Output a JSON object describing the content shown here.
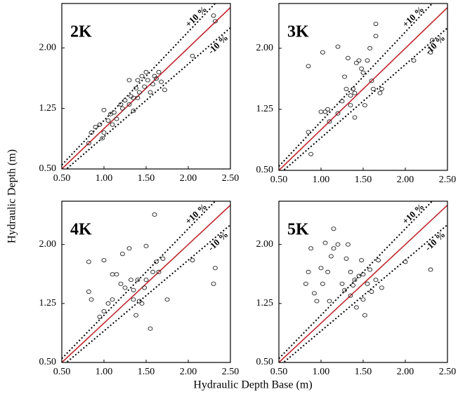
{
  "xlabel": "Hydraulic Depth Base (m)",
  "ylabel": "Hydraulic Depth (m)",
  "chart_data": [
    {
      "type": "scatter",
      "title": "2K",
      "annotations": [
        "+10 %",
        "-10 %"
      ],
      "tolerance_pct": 10,
      "x": [
        0.82,
        0.85,
        0.9,
        0.95,
        0.98,
        1.0,
        1.0,
        1.05,
        1.08,
        1.1,
        1.12,
        1.15,
        1.2,
        1.22,
        1.25,
        1.3,
        1.32,
        1.35,
        1.35,
        1.38,
        1.4,
        1.42,
        1.45,
        1.48,
        1.5,
        1.52,
        1.55,
        1.58,
        1.6,
        1.62,
        1.65,
        1.68,
        1.72,
        1.3,
        1.4,
        2.05,
        2.3,
        2.32
      ],
      "y": [
        0.82,
        0.95,
        1.02,
        1.05,
        0.88,
        1.23,
        0.95,
        1.1,
        1.18,
        1.05,
        1.2,
        1.12,
        1.3,
        1.25,
        1.35,
        1.3,
        1.4,
        1.38,
        1.22,
        1.5,
        1.6,
        1.45,
        1.65,
        1.52,
        1.7,
        1.6,
        1.45,
        1.55,
        1.65,
        1.62,
        1.7,
        1.58,
        1.48,
        1.6,
        1.38,
        1.9,
        2.4,
        2.33
      ],
      "xlim": [
        0.5,
        2.5
      ],
      "ylim": [
        0.5,
        2.55
      ],
      "xticks": [
        {
          "value": 0.5,
          "label": "0.50"
        },
        {
          "value": 1,
          "label": "1.00"
        },
        {
          "value": 1.5,
          "label": "1.50"
        },
        {
          "value": 2,
          "label": "2.00"
        },
        {
          "value": 2.5,
          "label": "2.50"
        }
      ],
      "yticks": [
        {
          "value": 0.5,
          "label": "0.50"
        },
        {
          "value": 1.25,
          "label": "1.25"
        },
        {
          "value": 2,
          "label": "2.00"
        }
      ]
    },
    {
      "type": "scatter",
      "title": "3K",
      "annotations": [
        "+10 %",
        "-10 %"
      ],
      "tolerance_pct": 10,
      "x": [
        0.85,
        0.85,
        0.88,
        1.0,
        1.02,
        1.05,
        1.08,
        1.1,
        1.2,
        1.2,
        1.25,
        1.28,
        1.3,
        1.32,
        1.35,
        1.35,
        1.38,
        1.4,
        1.42,
        1.45,
        1.48,
        1.5,
        1.52,
        1.55,
        1.58,
        1.6,
        1.62,
        1.65,
        1.65,
        1.7,
        1.72,
        1.4,
        2.1,
        2.3,
        2.32
      ],
      "y": [
        1.78,
        0.97,
        0.7,
        1.22,
        1.95,
        1.22,
        1.25,
        1.1,
        1.2,
        2.02,
        1.35,
        1.65,
        1.5,
        1.88,
        1.42,
        1.3,
        1.5,
        1.45,
        1.82,
        1.85,
        1.75,
        1.7,
        1.3,
        1.85,
        2.0,
        1.6,
        1.5,
        2.15,
        2.3,
        1.45,
        1.5,
        1.15,
        1.85,
        1.95,
        2.1
      ],
      "xlim": [
        0.5,
        2.5
      ],
      "ylim": [
        0.5,
        2.55
      ],
      "xticks": [
        {
          "value": 0.5,
          "label": "0.50"
        },
        {
          "value": 1,
          "label": "1.00"
        },
        {
          "value": 1.5,
          "label": "1.50"
        },
        {
          "value": 2,
          "label": "2.00"
        },
        {
          "value": 2.5,
          "label": "2.50"
        }
      ],
      "yticks": [
        {
          "value": 0.5,
          "label": "0.50"
        },
        {
          "value": 1.25,
          "label": "1.25"
        },
        {
          "value": 2,
          "label": "2.00"
        }
      ]
    },
    {
      "type": "scatter",
      "title": "4K",
      "annotations": [
        "+10 %",
        "-10 %"
      ],
      "tolerance_pct": 10,
      "x": [
        0.82,
        0.82,
        0.85,
        0.95,
        1.0,
        1.0,
        1.05,
        1.1,
        1.1,
        1.15,
        1.2,
        1.22,
        1.25,
        1.3,
        1.32,
        1.35,
        1.35,
        1.38,
        1.4,
        1.42,
        1.45,
        1.48,
        1.5,
        1.5,
        1.55,
        1.58,
        1.6,
        1.62,
        1.65,
        1.7,
        1.75,
        2.05,
        2.3,
        2.32
      ],
      "y": [
        1.78,
        1.4,
        1.3,
        1.08,
        1.15,
        1.8,
        1.25,
        1.3,
        1.62,
        1.62,
        1.5,
        1.88,
        1.45,
        1.95,
        1.55,
        1.3,
        1.42,
        1.1,
        1.55,
        1.28,
        1.25,
        1.45,
        1.98,
        1.55,
        0.93,
        1.65,
        2.38,
        1.78,
        1.65,
        1.82,
        1.3,
        1.8,
        1.5,
        1.7
      ],
      "xlim": [
        0.5,
        2.5
      ],
      "ylim": [
        0.5,
        2.55
      ],
      "xticks": [
        {
          "value": 0.5,
          "label": "0.50"
        },
        {
          "value": 1,
          "label": "1.00"
        },
        {
          "value": 1.5,
          "label": "1.50"
        },
        {
          "value": 2,
          "label": "2.00"
        },
        {
          "value": 2.5,
          "label": "2.50"
        }
      ],
      "yticks": [
        {
          "value": 0.5,
          "label": "0.50"
        },
        {
          "value": 1.25,
          "label": "1.25"
        },
        {
          "value": 2,
          "label": "2.00"
        }
      ]
    },
    {
      "type": "scatter",
      "title": "5K",
      "annotations": [
        "+10 %",
        "-10 %"
      ],
      "tolerance_pct": 10,
      "x": [
        0.82,
        0.85,
        0.88,
        0.92,
        0.95,
        1.0,
        1.02,
        1.05,
        1.08,
        1.1,
        1.12,
        1.15,
        1.15,
        1.2,
        1.25,
        1.28,
        1.3,
        1.32,
        1.35,
        1.35,
        1.38,
        1.4,
        1.42,
        1.45,
        1.48,
        1.5,
        1.5,
        1.52,
        1.55,
        1.58,
        1.6,
        1.65,
        1.68,
        1.72,
        2.0,
        2.3
      ],
      "y": [
        1.5,
        1.65,
        1.95,
        1.38,
        1.28,
        1.7,
        1.5,
        2.02,
        1.65,
        1.28,
        1.85,
        1.95,
        2.2,
        2.0,
        1.5,
        1.42,
        1.82,
        2.0,
        1.65,
        1.35,
        1.48,
        1.55,
        1.2,
        1.6,
        1.8,
        1.3,
        1.62,
        1.1,
        1.5,
        1.68,
        1.4,
        1.55,
        1.8,
        1.45,
        1.78,
        1.68
      ],
      "xlim": [
        0.5,
        2.5
      ],
      "ylim": [
        0.5,
        2.55
      ],
      "xticks": [
        {
          "value": 0.5,
          "label": "0.50"
        },
        {
          "value": 1,
          "label": "1.00"
        },
        {
          "value": 1.5,
          "label": "1.50"
        },
        {
          "value": 2,
          "label": "2.00"
        },
        {
          "value": 2.5,
          "label": "2.50"
        }
      ],
      "yticks": [
        {
          "value": 0.5,
          "label": "0.50"
        },
        {
          "value": 1.25,
          "label": "1.25"
        },
        {
          "value": 2,
          "label": "2.00"
        }
      ]
    }
  ]
}
